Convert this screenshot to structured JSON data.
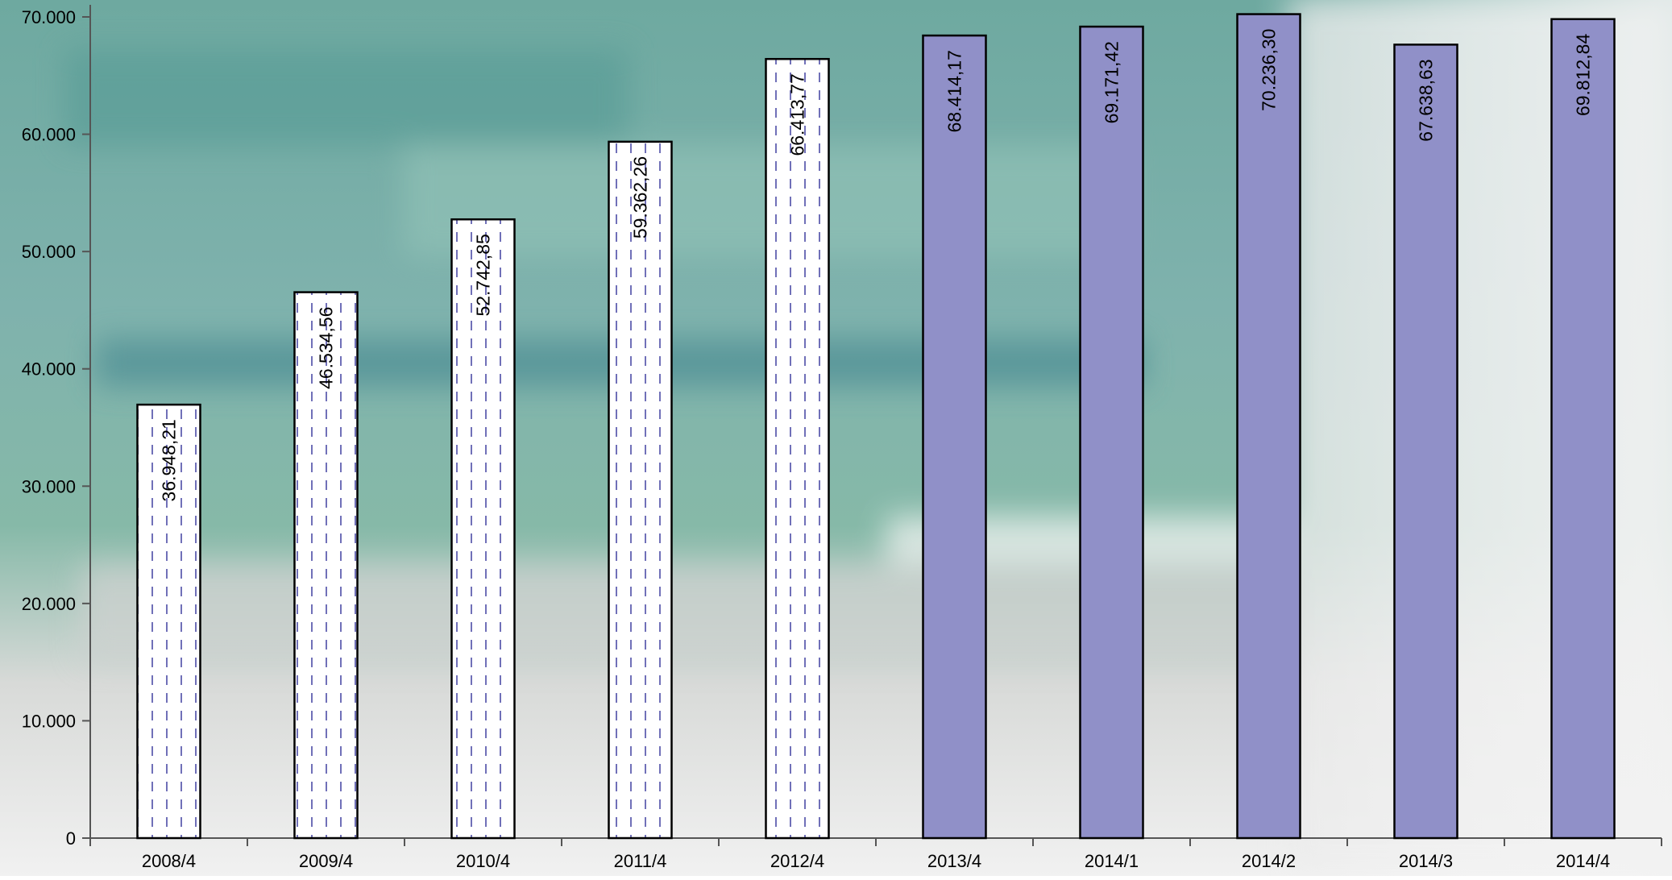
{
  "chart_data": {
    "type": "bar",
    "title": "",
    "xlabel": "",
    "ylabel": "",
    "ylim": [
      0,
      70000
    ],
    "yticks": [
      0,
      10000,
      20000,
      30000,
      40000,
      50000,
      60000,
      70000
    ],
    "ytick_labels": [
      "0",
      "10.000",
      "20.000",
      "30.000",
      "40.000",
      "50.000",
      "60.000",
      "70.000"
    ],
    "categories": [
      "2008/4",
      "2009/4",
      "2010/4",
      "2011/4",
      "2012/4",
      "2013/4",
      "2014/1",
      "2014/2",
      "2014/3",
      "2014/4"
    ],
    "values": [
      36948.21,
      46534.56,
      52742.85,
      59362.26,
      66413.77,
      68414.17,
      69171.42,
      70236.3,
      67638.63,
      69812.84
    ],
    "value_labels": [
      "36.948,21",
      "46.534,56",
      "52.742,85",
      "59.362,26",
      "66.413,77",
      "68.414,17",
      "69.171,42",
      "70.236,30",
      "67.638,63",
      "69.812,84"
    ],
    "bar_styles": [
      "dashed",
      "dashed",
      "dashed",
      "dashed",
      "dashed",
      "solid",
      "solid",
      "solid",
      "solid",
      "solid"
    ],
    "colors": {
      "solid_fill": "#9090c8",
      "dash_color": "#7070b8",
      "outline": "#000000"
    },
    "grid": false,
    "legend": "none",
    "background": "photo-teal-blur"
  }
}
